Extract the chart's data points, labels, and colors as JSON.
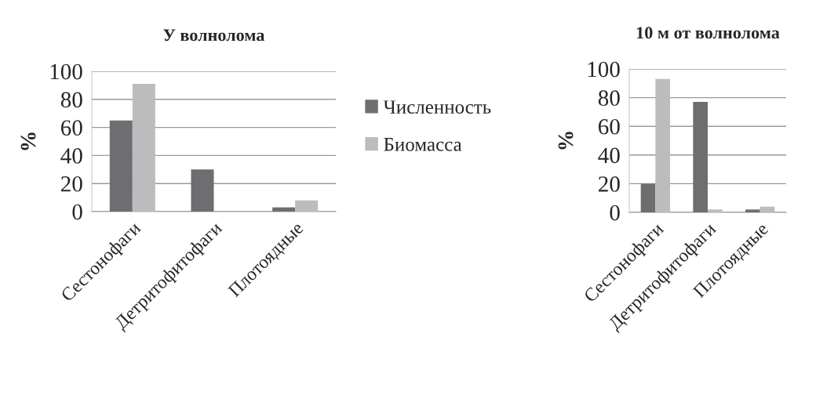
{
  "chart_data": [
    {
      "type": "bar",
      "title": "У волнолома",
      "ylabel": "%",
      "categories": [
        "Сестонофаги",
        "Детритофитофаги",
        "Плотоядные"
      ],
      "series": [
        {
          "name": "Численность",
          "color": "#6e6e70",
          "values": [
            65,
            30,
            3
          ]
        },
        {
          "name": "Биомасса",
          "color": "#bcbcbe",
          "values": [
            91,
            0,
            8
          ]
        }
      ],
      "ylim": [
        0,
        100
      ],
      "yticks": [
        0,
        20,
        40,
        60,
        80,
        100
      ],
      "grid": "y",
      "legend": "right"
    },
    {
      "type": "bar",
      "title": "10 м от волнолома",
      "ylabel": "%",
      "categories": [
        "Сестонофаги",
        "Детритофитофаги",
        "Плотоядные"
      ],
      "series": [
        {
          "color": "#6e6e70",
          "values": [
            20,
            77,
            2
          ]
        },
        {
          "color": "#bcbcbe",
          "values": [
            93,
            2,
            4
          ]
        }
      ],
      "ylim": [
        0,
        100
      ],
      "yticks": [
        0,
        20,
        40,
        60,
        80,
        100
      ],
      "grid": "y"
    }
  ]
}
